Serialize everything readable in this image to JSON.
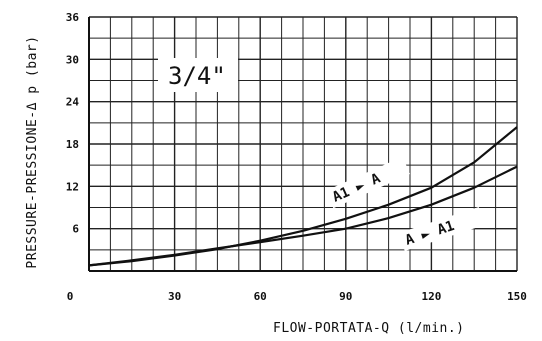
{
  "chart_data": {
    "type": "line",
    "title": "3/4\"",
    "xlabel": "FLOW-PORTATA-Q (l/min.)",
    "ylabel": "PRESSURE-PRESSIONE-Δ p (bar)",
    "xlim": [
      0,
      150
    ],
    "ylim": [
      0,
      36
    ],
    "x_ticks": [
      "0",
      "30",
      "60",
      "90",
      "120",
      "150"
    ],
    "y_ticks": [
      "6",
      "12",
      "18",
      "24",
      "30",
      "36"
    ],
    "grid": true,
    "series": [
      {
        "name": "A1 ► A",
        "x": [
          0,
          15,
          30,
          45,
          60,
          75,
          90,
          105,
          120,
          135,
          150
        ],
        "y": [
          0.8,
          1.4,
          2.2,
          3.1,
          4.3,
          5.7,
          7.4,
          9.4,
          11.8,
          15.4,
          20.4
        ]
      },
      {
        "name": "A ► A1",
        "x": [
          0,
          15,
          30,
          45,
          60,
          75,
          90,
          105,
          120,
          135,
          150
        ],
        "y": [
          0.8,
          1.5,
          2.3,
          3.2,
          4.1,
          5.0,
          6.0,
          7.5,
          9.4,
          11.8,
          14.8
        ]
      }
    ]
  }
}
